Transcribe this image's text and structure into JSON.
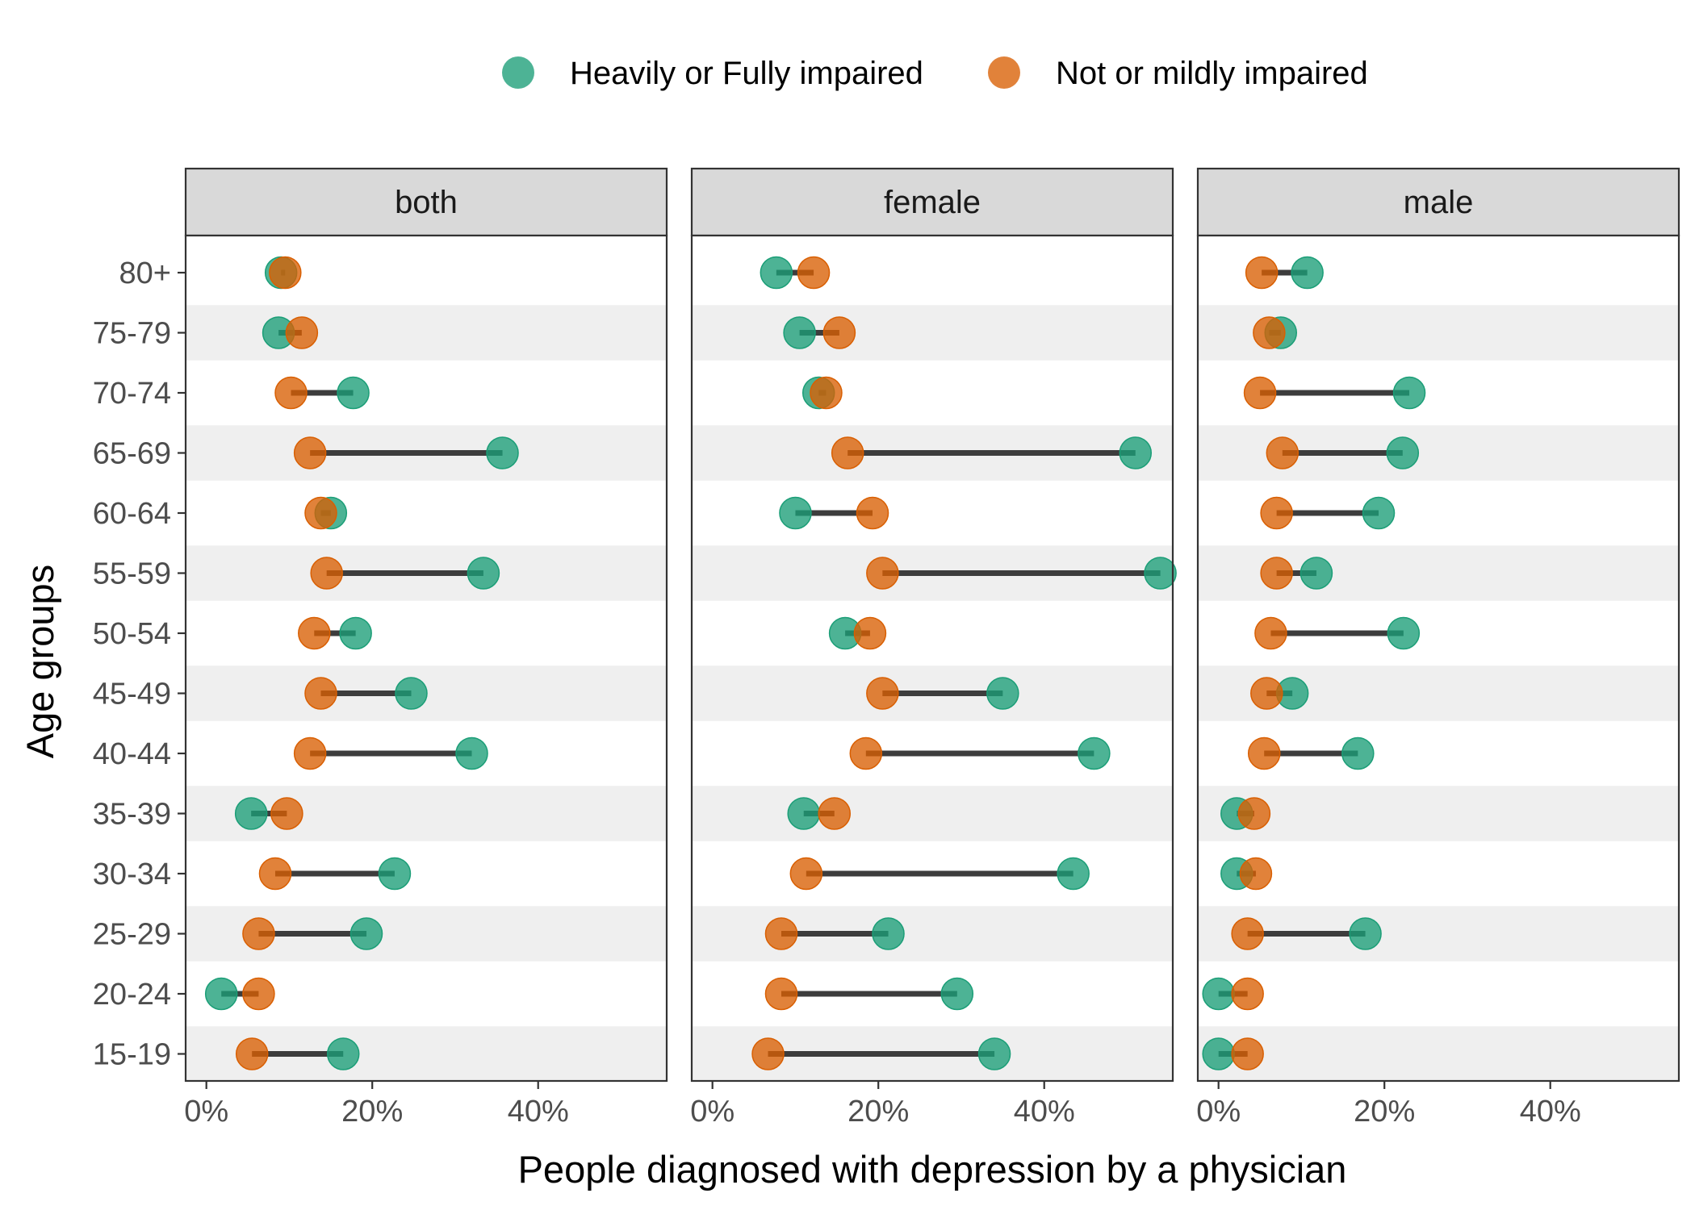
{
  "chart_data": {
    "type": "dumbbell",
    "xlabel": "People diagnosed with depression by a physician",
    "ylabel": "Age groups",
    "xlim": [
      -0.025,
      0.555
    ],
    "x_ticks": [
      0,
      0.2,
      0.4
    ],
    "x_tick_labels": [
      "0%",
      "20%",
      "40%"
    ],
    "categories": [
      "80+",
      "75-79",
      "70-74",
      "65-69",
      "60-64",
      "55-59",
      "50-54",
      "45-49",
      "40-44",
      "35-39",
      "30-34",
      "25-29",
      "20-24",
      "15-19"
    ],
    "legend": {
      "position": "top",
      "entries": [
        {
          "label": "Heavily or Fully impaired",
          "color": "#1b9e77"
        },
        {
          "label": "Not or mildly impaired",
          "color": "#d95f02"
        }
      ]
    },
    "series_colors": {
      "heavy": "#1b9e77",
      "mild": "#d95f02",
      "segment": "#3d3d3d"
    },
    "panels": [
      {
        "label": "both",
        "heavy": [
          0.09,
          0.087,
          0.177,
          0.357,
          0.15,
          0.334,
          0.18,
          0.247,
          0.32,
          0.054,
          0.227,
          0.193,
          0.018,
          0.165
        ],
        "mild": [
          0.095,
          0.115,
          0.102,
          0.125,
          0.138,
          0.145,
          0.13,
          0.138,
          0.125,
          0.097,
          0.083,
          0.063,
          0.063,
          0.055
        ]
      },
      {
        "label": "female",
        "heavy": [
          0.077,
          0.105,
          0.128,
          0.51,
          0.1,
          0.54,
          0.16,
          0.35,
          0.46,
          0.11,
          0.435,
          0.212,
          0.295,
          0.34
        ],
        "mild": [
          0.122,
          0.153,
          0.137,
          0.163,
          0.193,
          0.205,
          0.19,
          0.205,
          0.185,
          0.147,
          0.113,
          0.083,
          0.083,
          0.067
        ]
      },
      {
        "label": "male",
        "heavy": [
          0.107,
          0.075,
          0.23,
          0.222,
          0.193,
          0.118,
          0.223,
          0.089,
          0.168,
          0.022,
          0.022,
          0.177,
          0.0,
          0.0
        ],
        "mild": [
          0.052,
          0.061,
          0.05,
          0.077,
          0.07,
          0.07,
          0.063,
          0.058,
          0.055,
          0.043,
          0.045,
          0.035,
          0.035,
          0.035
        ]
      }
    ]
  }
}
